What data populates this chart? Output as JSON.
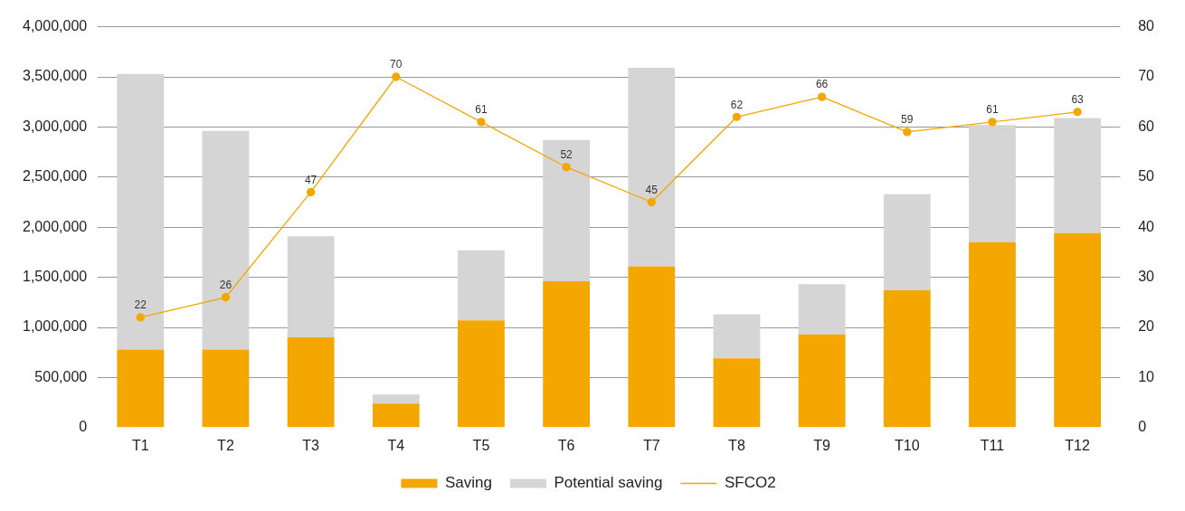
{
  "chart_data": {
    "type": "bar",
    "stacked": true,
    "categories": [
      "T1",
      "T2",
      "T3",
      "T4",
      "T5",
      "T6",
      "T7",
      "T8",
      "T9",
      "T10",
      "T11",
      "T12"
    ],
    "series": [
      {
        "name": "Saving",
        "color": "#f4a700",
        "values": [
          780000,
          780000,
          900000,
          240000,
          1070000,
          1460000,
          1610000,
          690000,
          930000,
          1370000,
          1850000,
          1940000
        ]
      },
      {
        "name": "Potential saving",
        "color": "#d5d5d5",
        "values": [
          2750000,
          2180000,
          1010000,
          90000,
          700000,
          1410000,
          1980000,
          440000,
          500000,
          960000,
          1170000,
          1150000
        ]
      },
      {
        "name": "SFCO2",
        "type": "line",
        "axis": "y2",
        "color": "#f4a700",
        "values": [
          22,
          26,
          47,
          70,
          61,
          52,
          45,
          62,
          66,
          59,
          61,
          63
        ],
        "data_labels": true,
        "marker": "circle"
      }
    ],
    "ylim": [
      0,
      4000000
    ],
    "yticks": [
      0,
      {
        "value": 500000,
        "label": "500,000"
      },
      {
        "value": 1000000,
        "label": "1,000,000"
      },
      {
        "value": 1500000,
        "label": "1,500,000"
      },
      {
        "value": 2000000,
        "label": "2,000,000"
      },
      {
        "value": 2500000,
        "label": "2,500,000"
      },
      {
        "value": 3000000,
        "label": "3,000,000"
      },
      {
        "value": 3500000,
        "label": "3,500,000"
      },
      {
        "value": 4000000,
        "label": "4,000,000"
      }
    ],
    "y2lim": [
      0,
      80
    ],
    "y2ticks": [
      0,
      10,
      20,
      30,
      40,
      50,
      60,
      70,
      80
    ],
    "grid": "y",
    "legend": "bottom"
  }
}
